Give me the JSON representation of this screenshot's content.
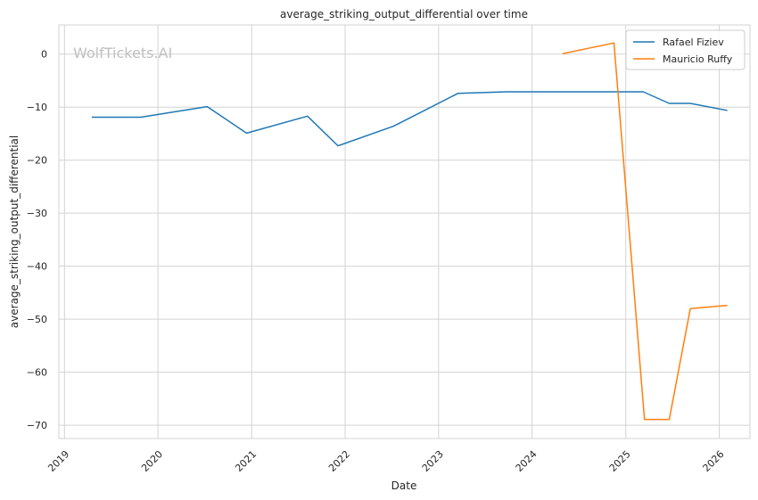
{
  "chart_data": {
    "type": "line",
    "title": "average_striking_output_differential over time",
    "xlabel": "Date",
    "ylabel": "average_striking_output_differential",
    "watermark": "WolfTickets.AI",
    "x_ticks": [
      "2019",
      "2020",
      "2021",
      "2022",
      "2023",
      "2024",
      "2025",
      "2026"
    ],
    "xlim": [
      "2018-12-10",
      "2026-05-01"
    ],
    "y_ticks": [
      0,
      -10,
      -20,
      -30,
      -40,
      -50,
      -60,
      -70
    ],
    "ylim": [
      -72.5,
      5.5
    ],
    "grid": true,
    "legend_position": "top-right",
    "series": [
      {
        "name": "Rafael Fiziev",
        "color": "#1f77b4",
        "points": [
          {
            "x": "2019-04-20",
            "y": -11.9
          },
          {
            "x": "2019-10-26",
            "y": -11.9
          },
          {
            "x": "2020-07-11",
            "y": -9.9
          },
          {
            "x": "2020-12-12",
            "y": -14.9
          },
          {
            "x": "2021-08-07",
            "y": -11.7
          },
          {
            "x": "2021-12-04",
            "y": -17.3
          },
          {
            "x": "2022-07-09",
            "y": -13.6
          },
          {
            "x": "2023-03-18",
            "y": -7.4
          },
          {
            "x": "2023-09-23",
            "y": -7.1
          },
          {
            "x": "2024-03-15",
            "y": -7.1
          },
          {
            "x": "2025-03-10",
            "y": -7.1
          },
          {
            "x": "2025-06-20",
            "y": -9.3
          },
          {
            "x": "2025-09-10",
            "y": -9.3
          },
          {
            "x": "2026-01-30",
            "y": -10.6
          }
        ]
      },
      {
        "name": "Mauricio Ruffy",
        "color": "#ff7f0e",
        "points": [
          {
            "x": "2024-05-01",
            "y": 0.1
          },
          {
            "x": "2024-11-16",
            "y": 2.1
          },
          {
            "x": "2025-03-15",
            "y": -68.9
          },
          {
            "x": "2025-06-20",
            "y": -68.9
          },
          {
            "x": "2025-09-10",
            "y": -48.0
          },
          {
            "x": "2026-01-30",
            "y": -47.4
          }
        ]
      }
    ]
  }
}
